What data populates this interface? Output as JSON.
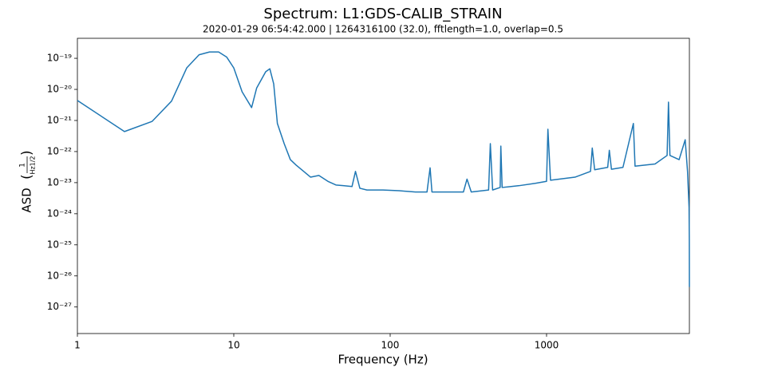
{
  "chart_data": {
    "type": "line",
    "title": "Spectrum: L1:GDS-CALIB_STRAIN",
    "subtitle": "2020-01-29 06:54:42.000 | 1264316100 (32.0), fftlength=1.0, overlap=0.5",
    "x_label": "Frequency (Hz)",
    "y_label": {
      "text": "ASD",
      "numerator": "1",
      "denominator": "Hz1/2"
    },
    "x_scale": "log",
    "y_scale": "log",
    "xlim": [
      1,
      8192
    ],
    "ylim": [
      1.4e-28,
      4.4e-19
    ],
    "xticks": [
      1,
      10,
      100,
      1000
    ],
    "yticks": [
      {
        "value": 1e-19,
        "label": "10⁻¹⁹"
      },
      {
        "value": 1e-20,
        "label": "10⁻²⁰"
      },
      {
        "value": 1e-21,
        "label": "10⁻²¹"
      },
      {
        "value": 1e-22,
        "label": "10⁻²²"
      },
      {
        "value": 1e-23,
        "label": "10⁻²³"
      },
      {
        "value": 1e-24,
        "label": "10⁻²⁴"
      },
      {
        "value": 1e-25,
        "label": "10⁻²⁵"
      },
      {
        "value": 1e-26,
        "label": "10⁻²⁶"
      },
      {
        "value": 1e-27,
        "label": "10⁻²⁷"
      }
    ],
    "x": [
      1,
      2,
      3,
      4,
      5,
      6,
      7,
      8,
      9,
      10,
      11.3,
      13,
      14,
      16,
      17,
      18,
      19,
      21,
      23,
      25,
      28,
      31,
      35,
      40,
      45,
      50,
      57,
      60,
      64,
      71,
      90,
      114,
      145,
      172,
      180,
      185,
      232,
      294,
      310,
      330,
      426,
      437,
      452,
      505,
      510,
      520,
      668,
      847,
      1000,
      1020,
      1060,
      1520,
      1910,
      1960,
      2030,
      2460,
      2520,
      2600,
      3080,
      3590,
      3680,
      4940,
      5900,
      6020,
      6150,
      7040,
      7700,
      7970,
      8150,
      8180,
      8192
    ],
    "series": [
      {
        "color": "#1f77b4",
        "values": [
          4.4e-21,
          4.4e-22,
          9.3e-22,
          4.2e-21,
          4.9e-20,
          1.3e-19,
          1.6e-19,
          1.6e-19,
          1.1e-19,
          4.9e-20,
          8.4e-21,
          2.6e-21,
          1.1e-20,
          3.7e-20,
          4.6e-20,
          1.5e-20,
          8e-22,
          1.8e-22,
          5.5e-23,
          3.7e-23,
          2.3e-23,
          1.5e-23,
          1.7e-23,
          1.1e-23,
          8.4e-24,
          8e-24,
          7.5e-24,
          2.3e-23,
          6.6e-24,
          5.8e-24,
          5.8e-24,
          5.5e-24,
          5e-24,
          5e-24,
          3e-23,
          5e-24,
          5e-24,
          5e-24,
          1.3e-23,
          5e-24,
          5.8e-24,
          1.8e-22,
          5.8e-24,
          7e-24,
          1.5e-22,
          7e-24,
          8e-24,
          9.5e-24,
          1.1e-23,
          5.2e-22,
          1.2e-23,
          1.5e-23,
          2.3e-23,
          1.3e-22,
          2.6e-23,
          3.1e-23,
          1.1e-22,
          2.7e-23,
          3.1e-23,
          8e-22,
          3.4e-23,
          4e-23,
          7.5e-23,
          3.9e-21,
          7.5e-23,
          5.5e-23,
          2.4e-22,
          2.3e-23,
          1.6e-24,
          1.5e-25,
          4.4e-27
        ]
      }
    ]
  }
}
